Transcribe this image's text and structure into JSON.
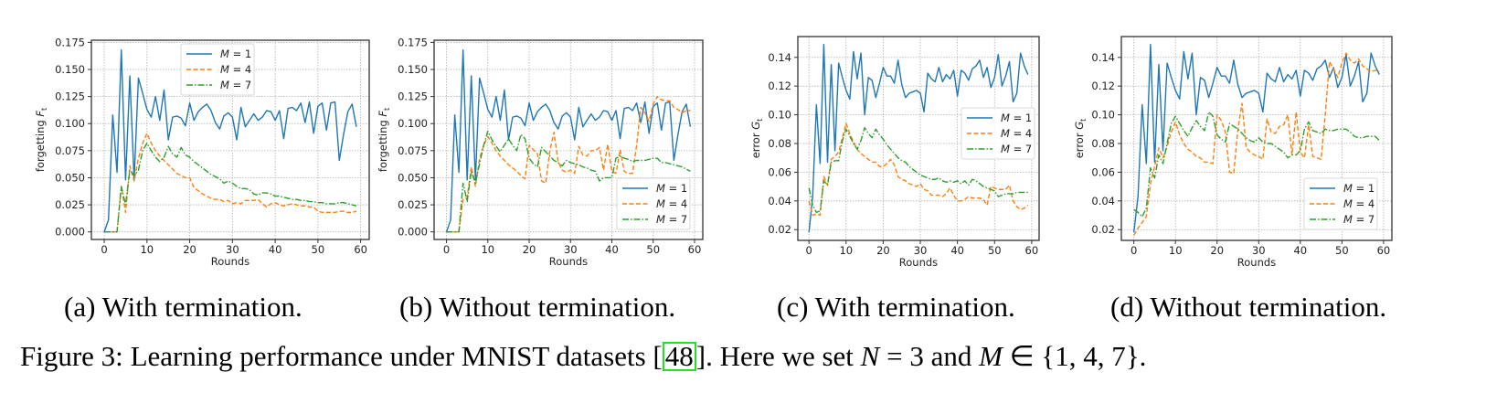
{
  "figure": {
    "caption_prefix": "Figure 3:",
    "caption_text": "Learning performance under MNIST datasets [",
    "caption_cite": "48",
    "caption_after_cite": "]. Here we set ",
    "caption_N": "N",
    "caption_eq": " = 3 and ",
    "caption_M": "M",
    "caption_set": " ∈ {1, 4, 7}."
  },
  "subcaptions": [
    {
      "label": "(a)",
      "text": "With termination."
    },
    {
      "label": "(b)",
      "text": "Without termination."
    },
    {
      "label": "(c)",
      "text": "With termination."
    },
    {
      "label": "(d)",
      "text": "Without termination."
    }
  ],
  "colors": {
    "m1": "#1f77b4",
    "m4": "#ff7f0e",
    "m7": "#2ca02c",
    "grid": "#b0b0b0",
    "frame": "#333333"
  },
  "chart_data": [
    {
      "id": "a",
      "type": "line",
      "title": "",
      "xlabel": "Rounds",
      "ylabel": "forgetting F_t",
      "xlim": [
        -3,
        62
      ],
      "ylim": [
        -0.007,
        0.177
      ],
      "xticks": [
        0,
        10,
        20,
        30,
        40,
        50,
        60
      ],
      "yticks": [
        0.0,
        0.025,
        0.05,
        0.075,
        0.1,
        0.125,
        0.15,
        0.175
      ],
      "ytick_labels": [
        "0.000",
        "0.025",
        "0.050",
        "0.075",
        "0.100",
        "0.125",
        "0.150",
        "0.175"
      ],
      "grid": true,
      "legend_position": "upper-center",
      "series": [
        {
          "name": "M = 1",
          "style": "solid",
          "color": "#1f77b4",
          "values": [
            0.0,
            0.011,
            0.108,
            0.055,
            0.168,
            0.048,
            0.144,
            0.048,
            0.142,
            0.128,
            0.113,
            0.106,
            0.125,
            0.103,
            0.131,
            0.085,
            0.106,
            0.107,
            0.105,
            0.098,
            0.119,
            0.103,
            0.111,
            0.115,
            0.118,
            0.112,
            0.101,
            0.095,
            0.107,
            0.11,
            0.106,
            0.085,
            0.115,
            0.097,
            0.103,
            0.109,
            0.103,
            0.106,
            0.112,
            0.111,
            0.103,
            0.112,
            0.086,
            0.114,
            0.115,
            0.112,
            0.119,
            0.101,
            0.12,
            0.091,
            0.116,
            0.119,
            0.094,
            0.119,
            0.12,
            0.066,
            0.09,
            0.111,
            0.118,
            0.097
          ]
        },
        {
          "name": "M = 4",
          "style": "dashed",
          "color": "#ff7f0e",
          "values": [
            0.0,
            0.0,
            0.0,
            0.0,
            0.042,
            0.018,
            0.061,
            0.047,
            0.068,
            0.082,
            0.091,
            0.082,
            0.075,
            0.07,
            0.066,
            0.062,
            0.058,
            0.054,
            0.052,
            0.05,
            0.05,
            0.041,
            0.038,
            0.035,
            0.033,
            0.031,
            0.03,
            0.03,
            0.028,
            0.029,
            0.026,
            0.027,
            0.026,
            0.029,
            0.029,
            0.029,
            0.03,
            0.026,
            0.023,
            0.026,
            0.027,
            0.025,
            0.024,
            0.025,
            0.026,
            0.025,
            0.024,
            0.024,
            0.023,
            0.023,
            0.019,
            0.018,
            0.018,
            0.018,
            0.018,
            0.019,
            0.019,
            0.018,
            0.018,
            0.019
          ]
        },
        {
          "name": "M = 7",
          "style": "dashdot",
          "color": "#2ca02c",
          "values": [
            0.0,
            0.0,
            0.0,
            0.0,
            0.042,
            0.025,
            0.057,
            0.052,
            0.057,
            0.075,
            0.082,
            0.075,
            0.069,
            0.065,
            0.069,
            0.079,
            0.072,
            0.069,
            0.078,
            0.071,
            0.069,
            0.065,
            0.062,
            0.059,
            0.056,
            0.053,
            0.051,
            0.049,
            0.045,
            0.047,
            0.045,
            0.042,
            0.04,
            0.04,
            0.039,
            0.035,
            0.034,
            0.036,
            0.036,
            0.035,
            0.033,
            0.033,
            0.032,
            0.031,
            0.03,
            0.03,
            0.029,
            0.029,
            0.028,
            0.028,
            0.027,
            0.027,
            0.026,
            0.026,
            0.026,
            0.027,
            0.027,
            0.026,
            0.025,
            0.024
          ]
        }
      ]
    },
    {
      "id": "b",
      "type": "line",
      "title": "",
      "xlabel": "Rounds",
      "ylabel": "forgetting F_t",
      "xlim": [
        -3,
        62
      ],
      "ylim": [
        -0.007,
        0.177
      ],
      "xticks": [
        0,
        10,
        20,
        30,
        40,
        50,
        60
      ],
      "yticks": [
        0.0,
        0.025,
        0.05,
        0.075,
        0.1,
        0.125,
        0.15,
        0.175
      ],
      "ytick_labels": [
        "0.000",
        "0.025",
        "0.050",
        "0.075",
        "0.100",
        "0.125",
        "0.150",
        "0.175"
      ],
      "grid": true,
      "legend_position": "lower-right",
      "series": [
        {
          "name": "M = 1",
          "style": "solid",
          "color": "#1f77b4",
          "values": [
            0.0,
            0.011,
            0.108,
            0.055,
            0.168,
            0.048,
            0.144,
            0.048,
            0.142,
            0.128,
            0.113,
            0.106,
            0.125,
            0.103,
            0.131,
            0.085,
            0.106,
            0.107,
            0.105,
            0.098,
            0.119,
            0.103,
            0.111,
            0.115,
            0.118,
            0.112,
            0.101,
            0.095,
            0.107,
            0.11,
            0.106,
            0.085,
            0.115,
            0.097,
            0.103,
            0.109,
            0.103,
            0.106,
            0.112,
            0.111,
            0.103,
            0.112,
            0.086,
            0.114,
            0.115,
            0.112,
            0.119,
            0.101,
            0.12,
            0.091,
            0.116,
            0.119,
            0.094,
            0.119,
            0.12,
            0.066,
            0.09,
            0.111,
            0.118,
            0.097
          ]
        },
        {
          "name": "M = 4",
          "style": "dashed",
          "color": "#ff7f0e",
          "values": [
            0.0,
            0.0,
            0.0,
            0.0,
            0.03,
            0.032,
            0.06,
            0.042,
            0.068,
            0.08,
            0.088,
            0.082,
            0.075,
            0.07,
            0.066,
            0.062,
            0.059,
            0.056,
            0.052,
            0.049,
            0.08,
            0.076,
            0.072,
            0.047,
            0.045,
            0.075,
            0.092,
            0.065,
            0.057,
            0.055,
            0.057,
            0.054,
            0.079,
            0.071,
            0.07,
            0.075,
            0.075,
            0.078,
            0.057,
            0.081,
            0.056,
            0.054,
            0.076,
            0.056,
            0.054,
            0.054,
            0.08,
            0.115,
            0.11,
            0.102,
            0.118,
            0.125,
            0.122,
            0.121,
            0.121,
            0.115,
            0.113,
            0.11,
            0.112,
            0.112
          ]
        },
        {
          "name": "M = 7",
          "style": "dashdot",
          "color": "#2ca02c",
          "values": [
            0.0,
            0.0,
            0.0,
            0.0,
            0.045,
            0.028,
            0.056,
            0.045,
            0.063,
            0.08,
            0.093,
            0.085,
            0.079,
            0.074,
            0.08,
            0.086,
            0.08,
            0.075,
            0.09,
            0.086,
            0.068,
            0.063,
            0.06,
            0.078,
            0.074,
            0.07,
            0.066,
            0.064,
            0.061,
            0.066,
            0.064,
            0.063,
            0.062,
            0.06,
            0.059,
            0.057,
            0.056,
            0.047,
            0.05,
            0.05,
            0.05,
            0.068,
            0.07,
            0.068,
            0.067,
            0.065,
            0.066,
            0.066,
            0.066,
            0.067,
            0.068,
            0.068,
            0.064,
            0.064,
            0.063,
            0.062,
            0.061,
            0.06,
            0.058,
            0.056
          ]
        }
      ]
    },
    {
      "id": "c",
      "type": "line",
      "title": "",
      "xlabel": "Rounds",
      "ylabel": "error G_t",
      "xlim": [
        -3,
        62
      ],
      "ylim": [
        0.0125,
        0.1545
      ],
      "xticks": [
        0,
        10,
        20,
        30,
        40,
        50,
        60
      ],
      "yticks": [
        0.02,
        0.04,
        0.06,
        0.08,
        0.1,
        0.12,
        0.14
      ],
      "ytick_labels": [
        "0.02",
        "0.04",
        "0.06",
        "0.08",
        "0.10",
        "0.12",
        "0.14"
      ],
      "grid": true,
      "legend_position": "center-right",
      "series": [
        {
          "name": "M = 1",
          "style": "solid",
          "color": "#1f77b4",
          "values": [
            0.018,
            0.043,
            0.107,
            0.066,
            0.149,
            0.067,
            0.135,
            0.075,
            0.136,
            0.126,
            0.117,
            0.111,
            0.144,
            0.125,
            0.143,
            0.1,
            0.126,
            0.124,
            0.112,
            0.122,
            0.133,
            0.127,
            0.127,
            0.122,
            0.138,
            0.121,
            0.112,
            0.115,
            0.116,
            0.117,
            0.115,
            0.102,
            0.129,
            0.125,
            0.123,
            0.133,
            0.123,
            0.128,
            0.125,
            0.131,
            0.113,
            0.131,
            0.129,
            0.124,
            0.132,
            0.134,
            0.138,
            0.126,
            0.133,
            0.119,
            0.126,
            0.142,
            0.12,
            0.127,
            0.137,
            0.109,
            0.115,
            0.143,
            0.134,
            0.128
          ]
        },
        {
          "name": "M = 4",
          "style": "dashed",
          "color": "#ff7f0e",
          "values": [
            0.04,
            0.03,
            0.031,
            0.03,
            0.057,
            0.051,
            0.069,
            0.071,
            0.074,
            0.084,
            0.094,
            0.087,
            0.081,
            0.076,
            0.073,
            0.071,
            0.069,
            0.067,
            0.067,
            0.064,
            0.064,
            0.066,
            0.069,
            0.065,
            0.057,
            0.055,
            0.054,
            0.052,
            0.051,
            0.05,
            0.052,
            0.048,
            0.047,
            0.044,
            0.044,
            0.044,
            0.043,
            0.045,
            0.049,
            0.044,
            0.04,
            0.04,
            0.041,
            0.043,
            0.042,
            0.042,
            0.042,
            0.041,
            0.037,
            0.05,
            0.049,
            0.048,
            0.048,
            0.048,
            0.051,
            0.04,
            0.036,
            0.034,
            0.035,
            0.037
          ]
        },
        {
          "name": "M = 7",
          "style": "dashdot",
          "color": "#2ca02c",
          "values": [
            0.049,
            0.037,
            0.032,
            0.033,
            0.054,
            0.051,
            0.067,
            0.068,
            0.068,
            0.082,
            0.09,
            0.085,
            0.08,
            0.076,
            0.082,
            0.091,
            0.087,
            0.084,
            0.09,
            0.086,
            0.083,
            0.079,
            0.076,
            0.073,
            0.07,
            0.068,
            0.067,
            0.064,
            0.062,
            0.06,
            0.058,
            0.057,
            0.056,
            0.055,
            0.055,
            0.056,
            0.054,
            0.053,
            0.054,
            0.053,
            0.054,
            0.052,
            0.054,
            0.051,
            0.055,
            0.054,
            0.052,
            0.05,
            0.049,
            0.048,
            0.047,
            0.043,
            0.044,
            0.045,
            0.045,
            0.045,
            0.046,
            0.046,
            0.046,
            0.046
          ]
        }
      ]
    },
    {
      "id": "d",
      "type": "line",
      "title": "",
      "xlabel": "Rounds",
      "ylabel": "error G_t",
      "xlim": [
        -3,
        62
      ],
      "ylim": [
        0.0125,
        0.1545
      ],
      "xticks": [
        0,
        10,
        20,
        30,
        40,
        50,
        60
      ],
      "yticks": [
        0.02,
        0.04,
        0.06,
        0.08,
        0.1,
        0.12,
        0.14
      ],
      "ytick_labels": [
        "0.02",
        "0.04",
        "0.06",
        "0.08",
        "0.10",
        "0.12",
        "0.14"
      ],
      "grid": true,
      "legend_position": "lower-right",
      "series": [
        {
          "name": "M = 1",
          "style": "solid",
          "color": "#1f77b4",
          "values": [
            0.018,
            0.043,
            0.107,
            0.066,
            0.149,
            0.067,
            0.135,
            0.075,
            0.136,
            0.126,
            0.117,
            0.111,
            0.144,
            0.125,
            0.143,
            0.1,
            0.126,
            0.124,
            0.112,
            0.122,
            0.133,
            0.127,
            0.127,
            0.122,
            0.138,
            0.121,
            0.112,
            0.115,
            0.116,
            0.117,
            0.115,
            0.102,
            0.129,
            0.125,
            0.123,
            0.133,
            0.123,
            0.128,
            0.125,
            0.131,
            0.113,
            0.131,
            0.129,
            0.124,
            0.132,
            0.134,
            0.138,
            0.126,
            0.133,
            0.119,
            0.126,
            0.142,
            0.12,
            0.127,
            0.137,
            0.109,
            0.115,
            0.143,
            0.134,
            0.128
          ]
        },
        {
          "name": "M = 4",
          "style": "dashed",
          "color": "#ff7f0e",
          "values": [
            0.016,
            0.021,
            0.025,
            0.029,
            0.052,
            0.064,
            0.077,
            0.07,
            0.078,
            0.088,
            0.095,
            0.086,
            0.08,
            0.076,
            0.074,
            0.071,
            0.07,
            0.067,
            0.067,
            0.066,
            0.1,
            0.096,
            0.088,
            0.06,
            0.059,
            0.09,
            0.108,
            0.077,
            0.074,
            0.072,
            0.071,
            0.069,
            0.097,
            0.088,
            0.087,
            0.092,
            0.093,
            0.1,
            0.072,
            0.102,
            0.074,
            0.07,
            0.093,
            0.071,
            0.07,
            0.069,
            0.1,
            0.137,
            0.132,
            0.126,
            0.136,
            0.143,
            0.138,
            0.136,
            0.139,
            0.134,
            0.132,
            0.13,
            0.131,
            0.13
          ]
        },
        {
          "name": "M = 7",
          "style": "dashdot",
          "color": "#2ca02c",
          "values": [
            0.034,
            0.032,
            0.029,
            0.035,
            0.063,
            0.056,
            0.072,
            0.066,
            0.08,
            0.094,
            0.099,
            0.094,
            0.089,
            0.085,
            0.091,
            0.096,
            0.092,
            0.089,
            0.102,
            0.099,
            0.086,
            0.083,
            0.081,
            0.094,
            0.092,
            0.09,
            0.087,
            0.084,
            0.082,
            0.081,
            0.084,
            0.081,
            0.08,
            0.08,
            0.078,
            0.076,
            0.074,
            0.07,
            0.072,
            0.072,
            0.075,
            0.09,
            0.095,
            0.089,
            0.088,
            0.087,
            0.09,
            0.089,
            0.089,
            0.09,
            0.09,
            0.09,
            0.088,
            0.085,
            0.084,
            0.084,
            0.085,
            0.085,
            0.085,
            0.082
          ]
        }
      ]
    }
  ]
}
